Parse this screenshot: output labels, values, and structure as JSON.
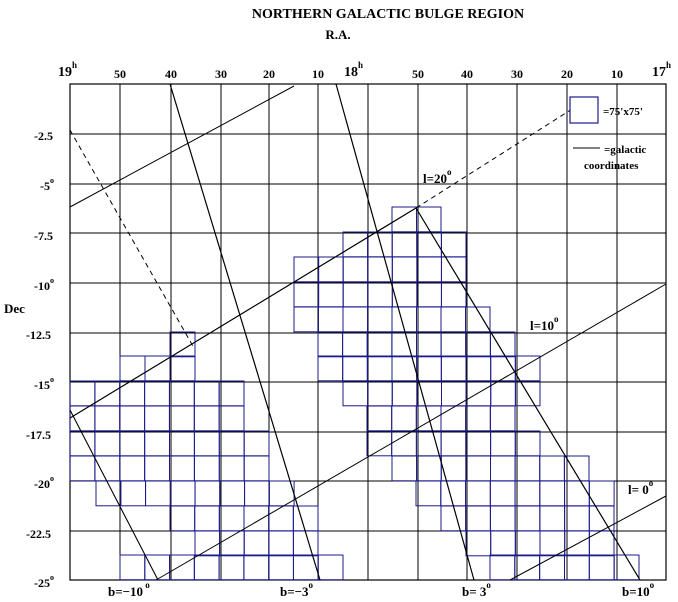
{
  "title": "NORTHERN GALACTIC BULGE REGION",
  "ra_axis_label": "R.A.",
  "dec_axis_label": "Dec",
  "ra_hour_labels": [
    {
      "h": "19",
      "sup": "h"
    },
    {
      "h": "18",
      "sup": "h"
    },
    {
      "h": "17",
      "sup": "h"
    }
  ],
  "ra_minute_labels": [
    "50",
    "40",
    "30",
    "20",
    "10",
    "50",
    "40",
    "30",
    "20",
    "10"
  ],
  "dec_labels": [
    {
      "text": "-2.5",
      "sup": ""
    },
    {
      "text": "-5",
      "sup": "o"
    },
    {
      "text": "-7.5",
      "sup": ""
    },
    {
      "text": "-10",
      "sup": "o"
    },
    {
      "text": "-12.5",
      "sup": ""
    },
    {
      "text": "-15",
      "sup": "o"
    },
    {
      "text": "-17.5",
      "sup": ""
    },
    {
      "text": "-20",
      "sup": "o"
    },
    {
      "text": "-22.5",
      "sup": ""
    },
    {
      "text": "-25",
      "sup": "o"
    }
  ],
  "legend": {
    "box_label": "=75'x75'",
    "line_label_1": "=galactic",
    "line_label_2": "coordinates"
  },
  "galactic_labels": {
    "l20": {
      "text": "l=20",
      "sup": "o"
    },
    "l10": {
      "text": "l=10",
      "sup": "o"
    },
    "l0": {
      "text": "l= 0",
      "sup": "o"
    },
    "bm10": {
      "text": "b=−10",
      "sup": " o"
    },
    "bm3": {
      "text": "b=−3",
      "sup": "o"
    },
    "bp3": {
      "text": "b= 3",
      "sup": "o"
    },
    "bp10": {
      "text": "b=10",
      "sup": "o"
    }
  },
  "colors": {
    "grid": "#000000",
    "field_boxes": "#1a1a8c",
    "galactic_lines": "#000000"
  }
}
